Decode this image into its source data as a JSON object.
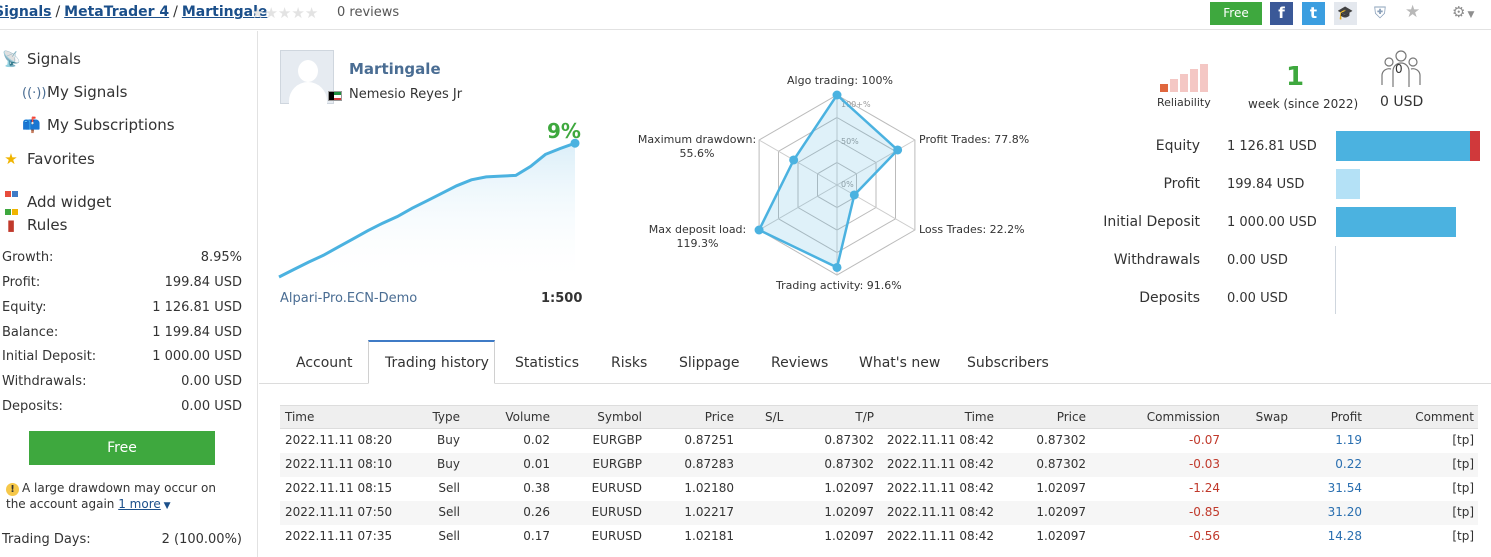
{
  "breadcrumb": {
    "items": [
      "Signals",
      "MetaTrader 4",
      "Martingale"
    ],
    "separator": "/"
  },
  "rating": {
    "stars": 0,
    "max": 5,
    "reviews_text": "0 reviews"
  },
  "header_actions": {
    "free_label": "Free",
    "facebook": "f",
    "twitter": "t",
    "icons": [
      "facebook-icon",
      "twitter-icon",
      "graduation-cap-icon",
      "shield-icon",
      "star-icon",
      "gear-icon"
    ]
  },
  "sidebar": {
    "nav": [
      {
        "label": "Signals",
        "icon": "antenna-icon"
      },
      {
        "label": "My Signals",
        "icon": "broadcast-icon"
      },
      {
        "label": "My Subscriptions",
        "icon": "mailbox-icon"
      },
      {
        "label": "Favorites",
        "icon": "star-icon"
      },
      {
        "label": "Add widget",
        "icon": "widget-icon"
      },
      {
        "label": "Rules",
        "icon": "bookmark-icon"
      }
    ],
    "stats": [
      {
        "label": "Growth:",
        "value": "8.95%"
      },
      {
        "label": "Profit:",
        "value": "199.84 USD"
      },
      {
        "label": "Equity:",
        "value": "1 126.81 USD"
      },
      {
        "label": "Balance:",
        "value": "1 199.84 USD"
      },
      {
        "label": "Initial Deposit:",
        "value": "1 000.00 USD"
      },
      {
        "label": "Withdrawals:",
        "value": "0.00 USD"
      },
      {
        "label": "Deposits:",
        "value": "0.00 USD"
      }
    ],
    "free_label": "Free",
    "warning_text": "A large drawdown may occur on the account again",
    "warning_link": "1 more",
    "trading_days_label": "Trading Days:",
    "trading_days_value": "2 (100.00%)"
  },
  "signal": {
    "name": "Martingale",
    "author": "Nemesio Reyes Jr",
    "growth": "9%",
    "broker": "Alpari-Pro.ECN-Demo",
    "leverage": "1:500",
    "growth_curve": [
      0,
      0.5,
      1.0,
      1.45,
      2.0,
      2.55,
      3.1,
      3.6,
      4.05,
      4.6,
      5.1,
      5.6,
      6.1,
      6.5,
      6.7,
      6.75,
      6.8,
      7.4,
      8.2,
      8.6,
      8.95
    ],
    "colors": {
      "accent": "#4bb2e0",
      "growth": "#3ea83e"
    }
  },
  "radar": {
    "labels": {
      "algo": "Algo trading: 100%",
      "profit_trades": "Profit Trades: 77.8%",
      "loss_trades": "Loss Trades: 22.2%",
      "activity": "Trading activity: 91.6%",
      "deposit_load_1": "Max deposit load:",
      "deposit_load_2": "119.3%",
      "drawdown_1": "Maximum drawdown:",
      "drawdown_2": "55.6%"
    },
    "ticks": [
      "100+%",
      "50%",
      "0%"
    ],
    "values": [
      1.0,
      0.778,
      0.222,
      0.916,
      1.0,
      0.556
    ]
  },
  "summary": {
    "reliability_label": "Reliability",
    "weeks": "1",
    "weeks_label": "week (since 2022)",
    "subscribers": "0",
    "subscribers_usd": "0 USD",
    "reliability_bars": 5,
    "reliability_filled": 1
  },
  "financials": [
    {
      "label": "Equity",
      "value": "1 126.81 USD",
      "amount": 1126.81,
      "color": "#4bb2e0",
      "alert_color": "#d0393b"
    },
    {
      "label": "Profit",
      "value": "199.84 USD",
      "amount": 199.84,
      "color": "#b4e1f6"
    },
    {
      "label": "Initial Deposit",
      "value": "1 000.00 USD",
      "amount": 1000.0,
      "color": "#4bb2e0"
    },
    {
      "label": "Withdrawals",
      "value": "0.00 USD",
      "amount": 0,
      "color": "#4bb2e0"
    },
    {
      "label": "Deposits",
      "value": "0.00 USD",
      "amount": 0,
      "color": "#4bb2e0"
    }
  ],
  "tabs": [
    {
      "label": "Account"
    },
    {
      "label": "Trading history",
      "active": true
    },
    {
      "label": "Statistics"
    },
    {
      "label": "Risks"
    },
    {
      "label": "Slippage"
    },
    {
      "label": "Reviews"
    },
    {
      "label": "What's new"
    },
    {
      "label": "Subscribers"
    }
  ],
  "history": {
    "columns": [
      "Time",
      "Type",
      "Volume",
      "Symbol",
      "Price",
      "S/L",
      "T/P",
      "Time",
      "Price",
      "Commission",
      "Swap",
      "Profit",
      "Comment"
    ],
    "rows": [
      [
        "2022.11.11 08:20",
        "Buy",
        "0.02",
        "EURGBP",
        "0.87251",
        "",
        "0.87302",
        "2022.11.11 08:42",
        "0.87302",
        "-0.07",
        "",
        "1.19",
        "[tp]"
      ],
      [
        "2022.11.11 08:10",
        "Buy",
        "0.01",
        "EURGBP",
        "0.87283",
        "",
        "0.87302",
        "2022.11.11 08:42",
        "0.87302",
        "-0.03",
        "",
        "0.22",
        "[tp]"
      ],
      [
        "2022.11.11 08:15",
        "Sell",
        "0.38",
        "EURUSD",
        "1.02180",
        "",
        "1.02097",
        "2022.11.11 08:42",
        "1.02097",
        "-1.24",
        "",
        "31.54",
        "[tp]"
      ],
      [
        "2022.11.11 07:50",
        "Sell",
        "0.26",
        "EURUSD",
        "1.02217",
        "",
        "1.02097",
        "2022.11.11 08:42",
        "1.02097",
        "-0.85",
        "",
        "31.20",
        "[tp]"
      ],
      [
        "2022.11.11 07:35",
        "Sell",
        "0.17",
        "EURUSD",
        "1.02181",
        "",
        "1.02097",
        "2022.11.11 08:42",
        "1.02097",
        "-0.56",
        "",
        "14.28",
        "[tp]"
      ]
    ]
  }
}
